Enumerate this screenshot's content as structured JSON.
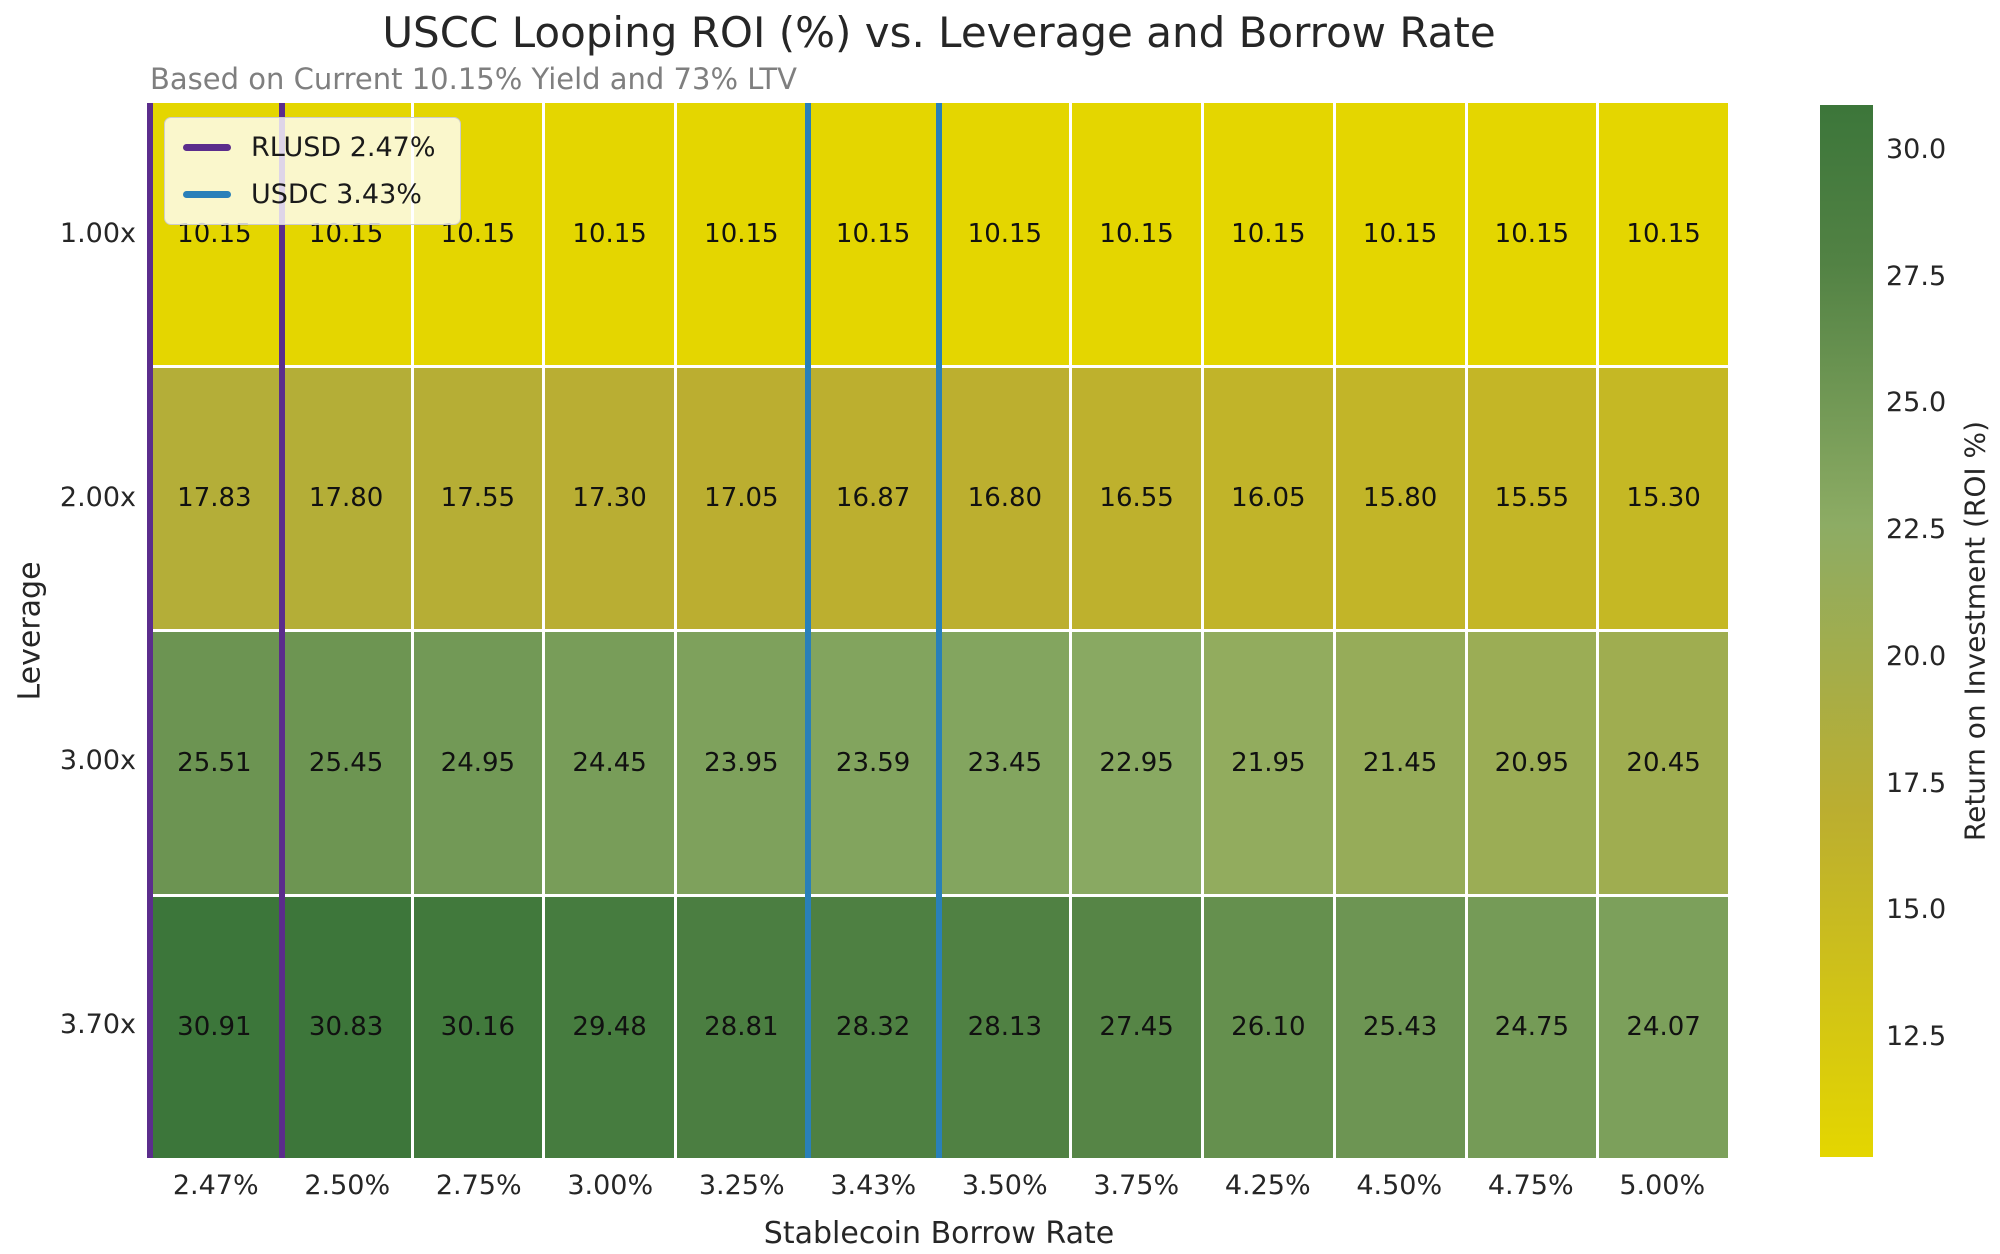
{
  "chart_data": {
    "type": "heatmap",
    "title": "USCC Looping ROI (%) vs. Leverage and Borrow Rate",
    "subtitle": "Based on Current 10.15% Yield and 73% LTV",
    "xlabel": "Stablecoin Borrow Rate",
    "ylabel": "Leverage",
    "x_categories": [
      "2.47%",
      "2.50%",
      "2.75%",
      "3.00%",
      "3.25%",
      "3.43%",
      "3.50%",
      "3.75%",
      "4.25%",
      "4.50%",
      "4.75%",
      "5.00%"
    ],
    "y_categories": [
      "1.00x",
      "2.00x",
      "3.00x",
      "3.70x"
    ],
    "values": [
      [
        10.15,
        10.15,
        10.15,
        10.15,
        10.15,
        10.15,
        10.15,
        10.15,
        10.15,
        10.15,
        10.15,
        10.15
      ],
      [
        17.83,
        17.8,
        17.55,
        17.3,
        17.05,
        16.87,
        16.8,
        16.55,
        16.05,
        15.8,
        15.55,
        15.3
      ],
      [
        25.51,
        25.45,
        24.95,
        24.45,
        23.95,
        23.59,
        23.45,
        22.95,
        21.95,
        21.45,
        20.95,
        20.45
      ],
      [
        30.91,
        30.83,
        30.16,
        29.48,
        28.81,
        28.32,
        28.13,
        27.45,
        26.1,
        25.43,
        24.75,
        24.07
      ]
    ],
    "annotation_decimals": 2,
    "vmin": 10.15,
    "vmax": 30.91,
    "colorbar_label": "Return on Investment (ROI %)",
    "colorbar_ticks": [
      12.5,
      15.0,
      17.5,
      20.0,
      22.5,
      25.0,
      27.5,
      30.0
    ],
    "colormap_stops": [
      {
        "t": 0.0,
        "color": "#e4d600"
      },
      {
        "t": 0.33,
        "color": "#bbae30"
      },
      {
        "t": 0.6,
        "color": "#8dac64"
      },
      {
        "t": 0.85,
        "color": "#528244"
      },
      {
        "t": 1.0,
        "color": "#3c763a"
      }
    ],
    "grid_line_color": "#ffffff",
    "legend": {
      "position": "upper-left",
      "entries": [
        {
          "label": "RLUSD 2.47%",
          "color": "#5b2d8c",
          "at_category": "2.47%"
        },
        {
          "label": "USDC 3.43%",
          "color": "#2980b9",
          "at_category": "3.43%"
        }
      ]
    },
    "text_colors": {
      "title": "#262626",
      "subtitle": "#7f7f7f",
      "ticks": "#262626",
      "annotations": "#111111"
    }
  }
}
